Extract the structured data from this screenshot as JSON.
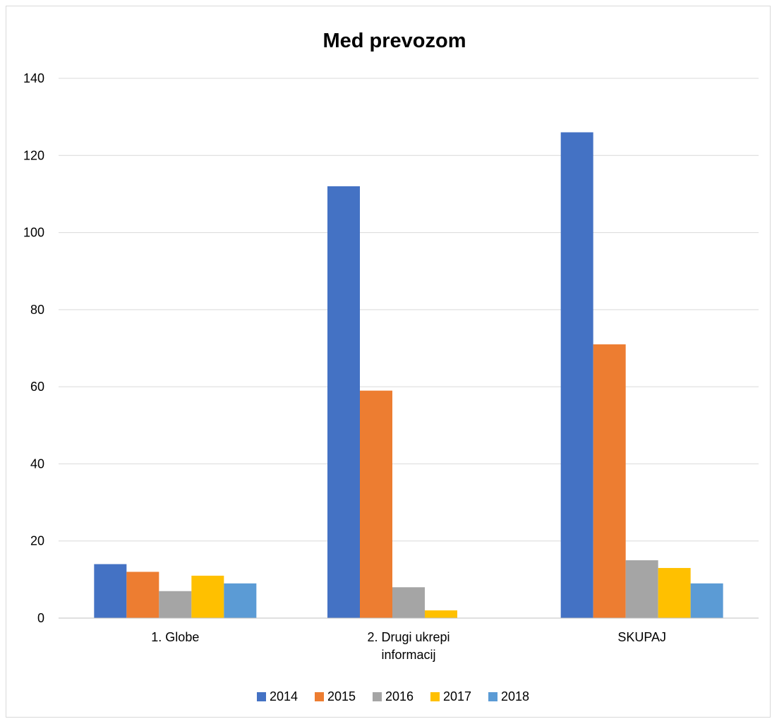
{
  "chart_data": {
    "type": "bar",
    "title": "Med prevozom",
    "categories": [
      [
        "1. Globe"
      ],
      [
        "2. Drugi ukrepi",
        "informacij"
      ],
      [
        "SKUPAJ"
      ]
    ],
    "series": [
      {
        "name": "2014",
        "color": "#4472c4",
        "values": [
          14,
          112,
          126
        ]
      },
      {
        "name": "2015",
        "color": "#ed7d31",
        "values": [
          12,
          59,
          71
        ]
      },
      {
        "name": "2016",
        "color": "#a5a5a5",
        "values": [
          7,
          8,
          15
        ]
      },
      {
        "name": "2017",
        "color": "#ffc000",
        "values": [
          11,
          2,
          13
        ]
      },
      {
        "name": "2018",
        "color": "#5b9bd5",
        "values": [
          9,
          0,
          9
        ]
      }
    ],
    "ylim": [
      0,
      140
    ],
    "yticks": [
      0,
      20,
      40,
      60,
      80,
      100,
      120,
      140
    ],
    "grid": true,
    "legend": "bottom"
  }
}
